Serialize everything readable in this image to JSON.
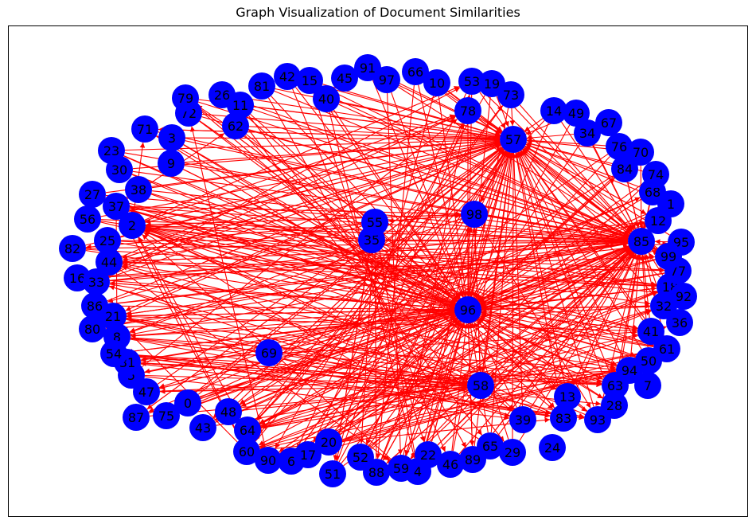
{
  "title": "Graph Visualization of Document Similarities",
  "colors": {
    "node": "#0000ff",
    "edge": "#ff0000",
    "label": "#000000",
    "frame": "#000000"
  },
  "nodes": [
    "0",
    "1",
    "2",
    "3",
    "4",
    "5",
    "6",
    "7",
    "8",
    "9",
    "10",
    "11",
    "12",
    "13",
    "14",
    "15",
    "16",
    "17",
    "18",
    "19",
    "20",
    "21",
    "22",
    "23",
    "24",
    "25",
    "26",
    "27",
    "28",
    "29",
    "30",
    "31",
    "32",
    "33",
    "34",
    "35",
    "36",
    "37",
    "38",
    "39",
    "40",
    "41",
    "42",
    "43",
    "44",
    "45",
    "46",
    "47",
    "48",
    "49",
    "50",
    "51",
    "52",
    "53",
    "54",
    "55",
    "56",
    "57",
    "58",
    "59",
    "60",
    "61",
    "62",
    "63",
    "64",
    "65",
    "66",
    "67",
    "68",
    "69",
    "70",
    "71",
    "72",
    "73",
    "74",
    "75",
    "76",
    "77",
    "78",
    "79",
    "80",
    "81",
    "82",
    "83",
    "84",
    "85",
    "86",
    "87",
    "88",
    "89",
    "90",
    "91",
    "92",
    "93",
    "94",
    "95",
    "96",
    "97",
    "98",
    "99"
  ],
  "edges": [
    [
      "57",
      "98"
    ],
    [
      "57",
      "2"
    ],
    [
      "57",
      "64"
    ],
    [
      "57",
      "21"
    ],
    [
      "57",
      "87"
    ],
    [
      "57",
      "96"
    ],
    [
      "57",
      "12"
    ],
    [
      "57",
      "58"
    ],
    [
      "57",
      "59"
    ],
    [
      "57",
      "6"
    ],
    [
      "57",
      "44"
    ],
    [
      "57",
      "43"
    ],
    [
      "57",
      "71"
    ],
    [
      "98",
      "57"
    ],
    [
      "98",
      "58"
    ],
    [
      "98",
      "96"
    ],
    [
      "98",
      "2"
    ],
    [
      "98",
      "93"
    ],
    [
      "98",
      "52"
    ],
    [
      "98",
      "55"
    ],
    [
      "98",
      "85"
    ],
    [
      "98",
      "8"
    ],
    [
      "96",
      "85"
    ],
    [
      "96",
      "18"
    ],
    [
      "96",
      "32"
    ],
    [
      "96",
      "33"
    ],
    [
      "96",
      "37"
    ],
    [
      "96",
      "88"
    ],
    [
      "96",
      "89"
    ],
    [
      "96",
      "47"
    ],
    [
      "96",
      "90"
    ],
    [
      "96",
      "41"
    ],
    [
      "96",
      "64"
    ],
    [
      "96",
      "21"
    ],
    [
      "96",
      "48"
    ],
    [
      "96",
      "57"
    ],
    [
      "96",
      "2"
    ],
    [
      "96",
      "12"
    ],
    [
      "96",
      "83"
    ],
    [
      "96",
      "79"
    ],
    [
      "58",
      "60"
    ],
    [
      "58",
      "64"
    ],
    [
      "58",
      "54"
    ],
    [
      "58",
      "31"
    ],
    [
      "58",
      "57"
    ],
    [
      "58",
      "98"
    ],
    [
      "58",
      "36"
    ],
    [
      "58",
      "16"
    ],
    [
      "58",
      "44"
    ],
    [
      "58",
      "17"
    ],
    [
      "58",
      "39"
    ],
    [
      "58",
      "47"
    ],
    [
      "58",
      "59"
    ],
    [
      "55",
      "35"
    ],
    [
      "55",
      "52"
    ],
    [
      "55",
      "4"
    ],
    [
      "55",
      "98"
    ],
    [
      "55",
      "82"
    ],
    [
      "55",
      "86"
    ],
    [
      "55",
      "44"
    ],
    [
      "55",
      "79"
    ],
    [
      "35",
      "51"
    ],
    [
      "35",
      "2"
    ],
    [
      "35",
      "37"
    ],
    [
      "35",
      "8"
    ],
    [
      "35",
      "85"
    ],
    [
      "85",
      "64"
    ],
    [
      "85",
      "60"
    ],
    [
      "85",
      "90"
    ],
    [
      "85",
      "44"
    ],
    [
      "85",
      "88"
    ],
    [
      "85",
      "21"
    ],
    [
      "85",
      "2"
    ],
    [
      "85",
      "96"
    ],
    [
      "85",
      "58"
    ],
    [
      "85",
      "12"
    ],
    [
      "85",
      "99"
    ],
    [
      "85",
      "57"
    ],
    [
      "64",
      "85"
    ],
    [
      "64",
      "18"
    ],
    [
      "64",
      "32"
    ],
    [
      "64",
      "94"
    ],
    [
      "64",
      "41"
    ],
    [
      "64",
      "61"
    ],
    [
      "64",
      "57"
    ],
    [
      "64",
      "73"
    ],
    [
      "64",
      "12"
    ],
    [
      "64",
      "2"
    ],
    [
      "64",
      "58"
    ],
    [
      "64",
      "96"
    ],
    [
      "60",
      "94"
    ],
    [
      "60",
      "32"
    ],
    [
      "60",
      "18"
    ],
    [
      "60",
      "83"
    ],
    [
      "60",
      "2"
    ],
    [
      "60",
      "37"
    ],
    [
      "60",
      "57"
    ],
    [
      "60",
      "21"
    ],
    [
      "90",
      "18"
    ],
    [
      "90",
      "85"
    ],
    [
      "90",
      "94"
    ],
    [
      "90",
      "61"
    ],
    [
      "90",
      "50"
    ],
    [
      "90",
      "96"
    ],
    [
      "90",
      "72"
    ],
    [
      "2",
      "85"
    ],
    [
      "2",
      "92"
    ],
    [
      "2",
      "18"
    ],
    [
      "2",
      "41"
    ],
    [
      "2",
      "96"
    ],
    [
      "2",
      "58"
    ],
    [
      "2",
      "53"
    ],
    [
      "2",
      "78"
    ],
    [
      "2",
      "98"
    ],
    [
      "2",
      "71"
    ],
    [
      "37",
      "85"
    ],
    [
      "37",
      "18"
    ],
    [
      "37",
      "61"
    ],
    [
      "37",
      "96"
    ],
    [
      "37",
      "98"
    ],
    [
      "37",
      "62"
    ],
    [
      "37",
      "8"
    ],
    [
      "44",
      "85"
    ],
    [
      "44",
      "18"
    ],
    [
      "44",
      "77"
    ],
    [
      "44",
      "57"
    ],
    [
      "44",
      "78"
    ],
    [
      "44",
      "63"
    ],
    [
      "44",
      "83"
    ],
    [
      "44",
      "59"
    ],
    [
      "21",
      "85"
    ],
    [
      "21",
      "32"
    ],
    [
      "21",
      "63"
    ],
    [
      "21",
      "93"
    ],
    [
      "21",
      "58"
    ],
    [
      "21",
      "96"
    ],
    [
      "21",
      "39"
    ],
    [
      "33",
      "85"
    ],
    [
      "33",
      "57"
    ],
    [
      "33",
      "78"
    ],
    [
      "33",
      "96"
    ],
    [
      "33",
      "94"
    ],
    [
      "33",
      "12"
    ],
    [
      "33",
      "53"
    ],
    [
      "8",
      "85"
    ],
    [
      "8",
      "94"
    ],
    [
      "8",
      "63"
    ],
    [
      "8",
      "58"
    ],
    [
      "8",
      "83"
    ],
    [
      "8",
      "96"
    ],
    [
      "54",
      "63"
    ],
    [
      "54",
      "83"
    ],
    [
      "54",
      "58"
    ],
    [
      "54",
      "28"
    ],
    [
      "54",
      "93"
    ],
    [
      "54",
      "96"
    ],
    [
      "31",
      "63"
    ],
    [
      "31",
      "93"
    ],
    [
      "31",
      "58"
    ],
    [
      "31",
      "96"
    ],
    [
      "31",
      "41"
    ],
    [
      "47",
      "94"
    ],
    [
      "47",
      "58"
    ],
    [
      "47",
      "96"
    ],
    [
      "47",
      "57"
    ],
    [
      "5",
      "96"
    ],
    [
      "5",
      "58"
    ],
    [
      "5",
      "39"
    ],
    [
      "5",
      "78"
    ],
    [
      "87",
      "96"
    ],
    [
      "87",
      "58"
    ],
    [
      "87",
      "57"
    ],
    [
      "43",
      "96"
    ],
    [
      "43",
      "85"
    ],
    [
      "43",
      "57"
    ],
    [
      "43",
      "61"
    ],
    [
      "48",
      "96"
    ],
    [
      "48",
      "85"
    ],
    [
      "48",
      "57"
    ],
    [
      "48",
      "94"
    ],
    [
      "6",
      "96"
    ],
    [
      "6",
      "85"
    ],
    [
      "6",
      "57"
    ],
    [
      "6",
      "32"
    ],
    [
      "17",
      "96"
    ],
    [
      "17",
      "85"
    ],
    [
      "17",
      "57"
    ],
    [
      "17",
      "50"
    ],
    [
      "51",
      "96"
    ],
    [
      "51",
      "57"
    ],
    [
      "51",
      "85"
    ],
    [
      "51",
      "78"
    ],
    [
      "51",
      "55"
    ],
    [
      "88",
      "96"
    ],
    [
      "88",
      "57"
    ],
    [
      "88",
      "85"
    ],
    [
      "88",
      "98"
    ],
    [
      "88",
      "55"
    ],
    [
      "59",
      "96"
    ],
    [
      "59",
      "57"
    ],
    [
      "59",
      "85"
    ],
    [
      "59",
      "53"
    ],
    [
      "59",
      "2"
    ],
    [
      "4",
      "96"
    ],
    [
      "4",
      "57"
    ],
    [
      "4",
      "85"
    ],
    [
      "4",
      "98"
    ],
    [
      "22",
      "96"
    ],
    [
      "22",
      "57"
    ],
    [
      "22",
      "85"
    ],
    [
      "22",
      "12"
    ],
    [
      "46",
      "96"
    ],
    [
      "46",
      "57"
    ],
    [
      "46",
      "85"
    ],
    [
      "89",
      "96"
    ],
    [
      "89",
      "57"
    ],
    [
      "89",
      "85"
    ],
    [
      "89",
      "12"
    ],
    [
      "65",
      "96"
    ],
    [
      "65",
      "57"
    ],
    [
      "65",
      "85"
    ],
    [
      "65",
      "2"
    ],
    [
      "29",
      "96"
    ],
    [
      "29",
      "57"
    ],
    [
      "29",
      "85"
    ],
    [
      "39",
      "96"
    ],
    [
      "39",
      "57"
    ],
    [
      "39",
      "85"
    ],
    [
      "39",
      "33"
    ],
    [
      "83",
      "96"
    ],
    [
      "83",
      "57"
    ],
    [
      "83",
      "85"
    ],
    [
      "83",
      "2"
    ],
    [
      "93",
      "96"
    ],
    [
      "93",
      "57"
    ],
    [
      "93",
      "85"
    ],
    [
      "93",
      "2"
    ],
    [
      "13",
      "96"
    ],
    [
      "13",
      "57"
    ],
    [
      "13",
      "85"
    ],
    [
      "28",
      "96"
    ],
    [
      "28",
      "57"
    ],
    [
      "28",
      "85"
    ],
    [
      "63",
      "96"
    ],
    [
      "63",
      "57"
    ],
    [
      "63",
      "85"
    ],
    [
      "63",
      "2"
    ],
    [
      "94",
      "96"
    ],
    [
      "94",
      "57"
    ],
    [
      "94",
      "85"
    ],
    [
      "94",
      "2"
    ],
    [
      "50",
      "96"
    ],
    [
      "50",
      "57"
    ],
    [
      "50",
      "85"
    ],
    [
      "50",
      "37"
    ],
    [
      "61",
      "96"
    ],
    [
      "61",
      "57"
    ],
    [
      "61",
      "85"
    ],
    [
      "61",
      "44"
    ],
    [
      "41",
      "96"
    ],
    [
      "41",
      "57"
    ],
    [
      "41",
      "85"
    ],
    [
      "41",
      "21"
    ],
    [
      "32",
      "96"
    ],
    [
      "32",
      "57"
    ],
    [
      "32",
      "85"
    ],
    [
      "32",
      "8"
    ],
    [
      "18",
      "96"
    ],
    [
      "18",
      "57"
    ],
    [
      "18",
      "85"
    ],
    [
      "18",
      "54"
    ],
    [
      "77",
      "96"
    ],
    [
      "77",
      "57"
    ],
    [
      "77",
      "85"
    ],
    [
      "77",
      "31"
    ],
    [
      "99",
      "96"
    ],
    [
      "99",
      "57"
    ],
    [
      "99",
      "85"
    ],
    [
      "99",
      "5"
    ],
    [
      "95",
      "96"
    ],
    [
      "95",
      "57"
    ],
    [
      "95",
      "85"
    ],
    [
      "12",
      "96"
    ],
    [
      "12",
      "57"
    ],
    [
      "12",
      "85"
    ],
    [
      "12",
      "47"
    ],
    [
      "1",
      "96"
    ],
    [
      "1",
      "57"
    ],
    [
      "1",
      "85"
    ],
    [
      "68",
      "96"
    ],
    [
      "68",
      "57"
    ],
    [
      "68",
      "85"
    ],
    [
      "68",
      "87"
    ],
    [
      "74",
      "96"
    ],
    [
      "74",
      "57"
    ],
    [
      "74",
      "85"
    ],
    [
      "84",
      "96"
    ],
    [
      "84",
      "57"
    ],
    [
      "84",
      "85"
    ],
    [
      "84",
      "43"
    ],
    [
      "70",
      "96"
    ],
    [
      "70",
      "57"
    ],
    [
      "70",
      "85"
    ],
    [
      "76",
      "96"
    ],
    [
      "76",
      "57"
    ],
    [
      "76",
      "85"
    ],
    [
      "76",
      "48"
    ],
    [
      "34",
      "96"
    ],
    [
      "34",
      "57"
    ],
    [
      "34",
      "85"
    ],
    [
      "49",
      "96"
    ],
    [
      "49",
      "57"
    ],
    [
      "49",
      "85"
    ],
    [
      "14",
      "96"
    ],
    [
      "14",
      "57"
    ],
    [
      "14",
      "85"
    ],
    [
      "14",
      "64"
    ],
    [
      "73",
      "96"
    ],
    [
      "73",
      "57"
    ],
    [
      "73",
      "85"
    ],
    [
      "73",
      "60"
    ],
    [
      "19",
      "96"
    ],
    [
      "19",
      "57"
    ],
    [
      "19",
      "85"
    ],
    [
      "19",
      "90"
    ],
    [
      "53",
      "96"
    ],
    [
      "53",
      "57"
    ],
    [
      "53",
      "85"
    ],
    [
      "53",
      "6"
    ],
    [
      "78",
      "96"
    ],
    [
      "78",
      "57"
    ],
    [
      "78",
      "85"
    ],
    [
      "78",
      "17"
    ],
    [
      "10",
      "96"
    ],
    [
      "10",
      "57"
    ],
    [
      "10",
      "85"
    ],
    [
      "10",
      "51"
    ],
    [
      "66",
      "96"
    ],
    [
      "66",
      "57"
    ],
    [
      "66",
      "85"
    ],
    [
      "66",
      "88"
    ],
    [
      "97",
      "96"
    ],
    [
      "97",
      "57"
    ],
    [
      "97",
      "85"
    ],
    [
      "97",
      "59"
    ],
    [
      "91",
      "96"
    ],
    [
      "91",
      "57"
    ],
    [
      "40",
      "96"
    ],
    [
      "40",
      "57"
    ],
    [
      "40",
      "85"
    ],
    [
      "40",
      "4"
    ],
    [
      "15",
      "96"
    ],
    [
      "15",
      "57"
    ],
    [
      "15",
      "85"
    ],
    [
      "15",
      "22"
    ],
    [
      "42",
      "96"
    ],
    [
      "42",
      "57"
    ],
    [
      "42",
      "85"
    ],
    [
      "42",
      "46"
    ],
    [
      "81",
      "96"
    ],
    [
      "81",
      "57"
    ],
    [
      "81",
      "85"
    ],
    [
      "81",
      "89"
    ],
    [
      "26",
      "96"
    ],
    [
      "26",
      "57"
    ],
    [
      "26",
      "85"
    ],
    [
      "26",
      "65"
    ],
    [
      "11",
      "96"
    ],
    [
      "11",
      "57"
    ],
    [
      "11",
      "85"
    ],
    [
      "11",
      "29"
    ],
    [
      "62",
      "96"
    ],
    [
      "62",
      "57"
    ],
    [
      "62",
      "85"
    ],
    [
      "62",
      "39"
    ],
    [
      "79",
      "96"
    ],
    [
      "79",
      "57"
    ],
    [
      "79",
      "85"
    ],
    [
      "79",
      "83"
    ],
    [
      "72",
      "96"
    ],
    [
      "72",
      "57"
    ],
    [
      "72",
      "85"
    ],
    [
      "72",
      "93"
    ],
    [
      "71",
      "96"
    ],
    [
      "71",
      "57"
    ],
    [
      "71",
      "85"
    ],
    [
      "71",
      "13"
    ],
    [
      "3",
      "96"
    ],
    [
      "3",
      "57"
    ],
    [
      "3",
      "85"
    ],
    [
      "3",
      "28"
    ],
    [
      "9",
      "96"
    ],
    [
      "9",
      "57"
    ],
    [
      "9",
      "85"
    ],
    [
      "9",
      "63"
    ],
    [
      "23",
      "96"
    ],
    [
      "23",
      "57"
    ],
    [
      "23",
      "85"
    ],
    [
      "23",
      "94"
    ],
    [
      "30",
      "96"
    ],
    [
      "30",
      "57"
    ],
    [
      "30",
      "85"
    ],
    [
      "30",
      "50"
    ],
    [
      "38",
      "96"
    ],
    [
      "38",
      "57"
    ],
    [
      "38",
      "85"
    ],
    [
      "38",
      "61"
    ],
    [
      "27",
      "96"
    ],
    [
      "27",
      "57"
    ],
    [
      "27",
      "85"
    ],
    [
      "27",
      "41"
    ],
    [
      "56",
      "96"
    ],
    [
      "56",
      "57"
    ],
    [
      "56",
      "85"
    ],
    [
      "56",
      "32"
    ],
    [
      "82",
      "96"
    ],
    [
      "82",
      "57"
    ],
    [
      "82",
      "85"
    ],
    [
      "82",
      "18"
    ],
    [
      "25",
      "96"
    ],
    [
      "25",
      "57"
    ],
    [
      "25",
      "85"
    ],
    [
      "25",
      "77"
    ],
    [
      "16",
      "96"
    ],
    [
      "16",
      "57"
    ],
    [
      "16",
      "85"
    ],
    [
      "16",
      "99"
    ],
    [
      "86",
      "96"
    ],
    [
      "86",
      "57"
    ],
    [
      "86",
      "85"
    ],
    [
      "86",
      "95"
    ],
    [
      "80",
      "96"
    ],
    [
      "80",
      "57"
    ],
    [
      "80",
      "85"
    ],
    [
      "80",
      "12"
    ],
    [
      "75",
      "96"
    ],
    [
      "75",
      "57"
    ],
    [
      "75",
      "85"
    ],
    [
      "75",
      "1"
    ],
    [
      "0",
      "96"
    ],
    [
      "0",
      "57"
    ],
    [
      "0",
      "85"
    ],
    [
      "0",
      "68"
    ],
    [
      "52",
      "96"
    ],
    [
      "52",
      "57"
    ],
    [
      "52",
      "85"
    ],
    [
      "52",
      "74"
    ],
    [
      "20",
      "96"
    ],
    [
      "20",
      "57"
    ],
    [
      "20",
      "85"
    ],
    [
      "20",
      "84"
    ],
    [
      "69",
      "96"
    ],
    [
      "69",
      "58"
    ]
  ]
}
